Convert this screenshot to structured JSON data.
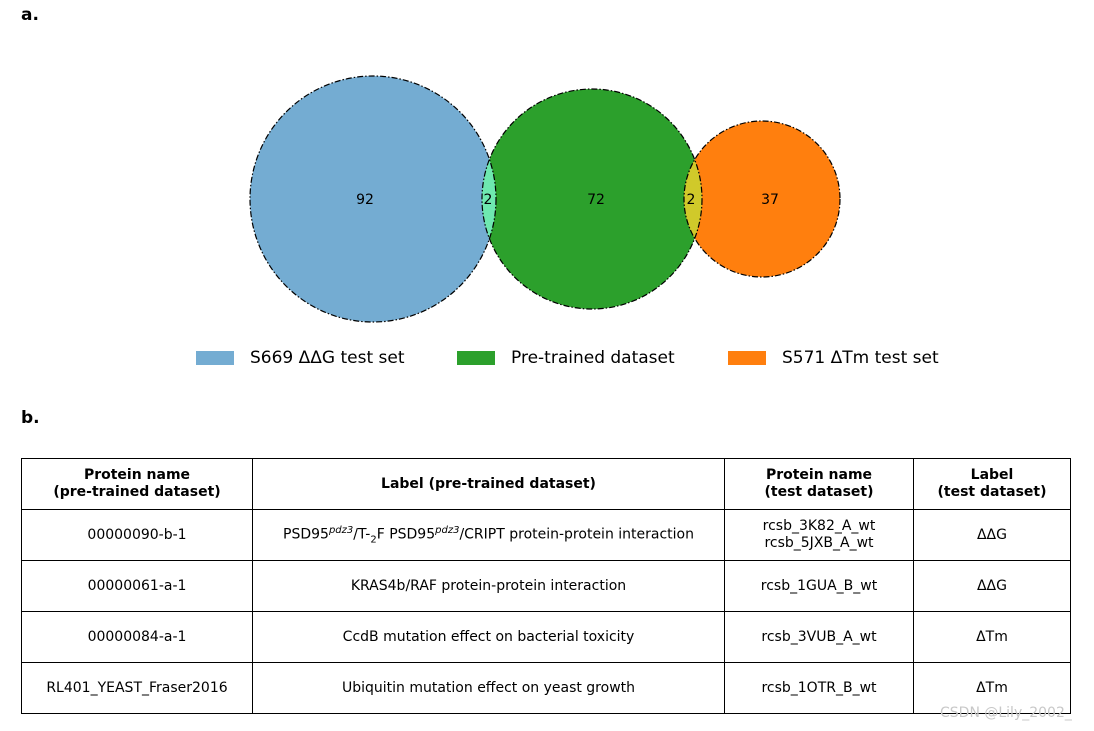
{
  "panel_a": "a.",
  "panel_b": "b.",
  "venn": {
    "sets": [
      {
        "name": "S669 ΔΔG test set",
        "only": "92",
        "color": "#74acd2"
      },
      {
        "name": "Pre-trained dataset",
        "only": "72",
        "color": "#2ca02c"
      },
      {
        "name": "S571 ΔTm test set",
        "only": "37",
        "color": "#ff7f0e"
      }
    ],
    "overlap_1_2": "2",
    "overlap_1_2_color": "#6ee8b0",
    "overlap_2_3": "2",
    "overlap_2_3_color": "#d0c92a"
  },
  "table": {
    "headers": [
      [
        "Protein name",
        "(pre-trained dataset)"
      ],
      [
        "Label (pre-trained dataset)"
      ],
      [
        "Protein name",
        "(test dataset)"
      ],
      [
        "Label",
        "(test dataset)"
      ]
    ],
    "rows": [
      {
        "protein": "00000090-b-1",
        "label_parts": [
          "PSD95",
          "pdz3",
          "/T-",
          "2",
          "F PSD95",
          "pdz3",
          "/CRIPT protein-protein interaction"
        ],
        "test": [
          "rcsb_3K82_A_wt",
          "rcsb_5JXB_A_wt"
        ],
        "test_label": "ΔΔG"
      },
      {
        "protein": "00000061-a-1",
        "label": "KRAS4b/RAF protein-protein interaction",
        "test": [
          "rcsb_1GUA_B_wt"
        ],
        "test_label": "ΔΔG"
      },
      {
        "protein": "00000084-a-1",
        "label": "CcdB mutation effect on bacterial toxicity",
        "test": [
          "rcsb_3VUB_A_wt"
        ],
        "test_label": "ΔTm"
      },
      {
        "protein": "RL401_YEAST_Fraser2016",
        "label": "Ubiquitin mutation effect on yeast growth",
        "test": [
          "rcsb_1OTR_B_wt"
        ],
        "test_label": "ΔTm"
      }
    ]
  },
  "watermark": "CSDN @Lily_2002_"
}
